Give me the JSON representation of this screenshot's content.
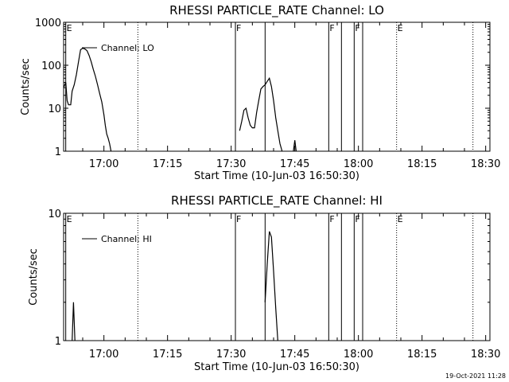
{
  "footer": {
    "stamp": "19-Oct-2021 11:28"
  },
  "chart_data": [
    {
      "type": "line",
      "title": "RHESSI PARTICLE_RATE Channel: LO",
      "xlabel": "Start Time (10-Jun-03 16:50:30)",
      "ylabel": "Counts/sec",
      "y_scale": "log",
      "ylim": [
        1,
        1000
      ],
      "xlim": [
        "16:50:30",
        "18:31:00"
      ],
      "x_ticks": [
        "17:00",
        "17:15",
        "17:30",
        "17:45",
        "18:00",
        "18:15",
        "18:30"
      ],
      "y_ticks": [
        "1",
        "10",
        "100",
        "1000"
      ],
      "legend": {
        "position": "top-left",
        "entries": [
          "Channel: LO"
        ]
      },
      "markers": [
        {
          "time": "16:51",
          "label": "E",
          "style": "solid"
        },
        {
          "time": "17:08",
          "label": "",
          "style": "dotted"
        },
        {
          "time": "17:31",
          "label": "F",
          "style": "solid"
        },
        {
          "time": "17:38",
          "label": "",
          "style": "solid"
        },
        {
          "time": "17:53",
          "label": "F",
          "style": "solid"
        },
        {
          "time": "17:56",
          "label": "",
          "style": "solid"
        },
        {
          "time": "17:59",
          "label": "F",
          "style": "solid"
        },
        {
          "time": "18:01",
          "label": "",
          "style": "solid"
        },
        {
          "time": "18:09",
          "label": "E",
          "style": "dotted"
        },
        {
          "time": "18:27",
          "label": "",
          "style": "dotted"
        }
      ],
      "series": [
        {
          "name": "Channel: LO",
          "segments": [
            [
              [
                "16:50:30",
                30
              ],
              [
                "16:51:00",
                40
              ],
              [
                "16:51:20",
                15
              ],
              [
                "16:51:40",
                12
              ],
              [
                "16:52:10",
                12
              ],
              [
                "16:52:30",
                25
              ],
              [
                "16:53:00",
                35
              ],
              [
                "16:53:30",
                60
              ],
              [
                "16:54:00",
                120
              ],
              [
                "16:54:30",
                230
              ],
              [
                "16:55:00",
                250
              ],
              [
                "16:55:30",
                240
              ],
              [
                "16:56:00",
                220
              ],
              [
                "16:56:30",
                170
              ],
              [
                "16:57:00",
                120
              ],
              [
                "16:57:30",
                80
              ],
              [
                "16:58:00",
                55
              ],
              [
                "16:58:30",
                35
              ],
              [
                "16:59:00",
                22
              ],
              [
                "16:59:30",
                14
              ],
              [
                "17:00:00",
                7
              ],
              [
                "17:00:20",
                4
              ],
              [
                "17:00:40",
                2.5
              ],
              [
                "17:01:00",
                2
              ],
              [
                "17:01:20",
                1.5
              ],
              [
                "17:01:40",
                1
              ]
            ],
            [
              [
                "17:32:00",
                3
              ],
              [
                "17:32:30",
                5
              ],
              [
                "17:33:00",
                9
              ],
              [
                "17:33:30",
                10
              ],
              [
                "17:34:00",
                6
              ],
              [
                "17:34:30",
                4
              ],
              [
                "17:35:00",
                3.5
              ],
              [
                "17:35:30",
                3.5
              ],
              [
                "17:36:00",
                8
              ],
              [
                "17:36:30",
                15
              ],
              [
                "17:37:00",
                28
              ],
              [
                "17:37:30",
                32
              ],
              [
                "17:38:00",
                35
              ],
              [
                "17:38:30",
                42
              ],
              [
                "17:39:00",
                50
              ],
              [
                "17:39:30",
                32
              ],
              [
                "17:40:00",
                15
              ],
              [
                "17:40:30",
                6
              ],
              [
                "17:41:00",
                3
              ],
              [
                "17:41:30",
                1.5
              ],
              [
                "17:42:00",
                1
              ]
            ],
            [
              [
                "17:44:40",
                1
              ],
              [
                "17:45:00",
                1.8
              ],
              [
                "17:45:20",
                1
              ]
            ]
          ]
        }
      ]
    },
    {
      "type": "line",
      "title": "RHESSI PARTICLE_RATE Channel: HI",
      "xlabel": "Start Time (10-Jun-03 16:50:30)",
      "ylabel": "Counts/sec",
      "y_scale": "log",
      "ylim": [
        1,
        10
      ],
      "xlim": [
        "16:50:30",
        "18:31:00"
      ],
      "x_ticks": [
        "17:00",
        "17:15",
        "17:30",
        "17:45",
        "18:00",
        "18:15",
        "18:30"
      ],
      "y_ticks": [
        "1",
        "10"
      ],
      "legend": {
        "position": "top-left",
        "entries": [
          "Channel: HI"
        ]
      },
      "markers": [
        {
          "time": "16:51",
          "label": "E",
          "style": "solid"
        },
        {
          "time": "17:08",
          "label": "",
          "style": "dotted"
        },
        {
          "time": "17:31",
          "label": "F",
          "style": "solid"
        },
        {
          "time": "17:38",
          "label": "",
          "style": "solid"
        },
        {
          "time": "17:53",
          "label": "F",
          "style": "solid"
        },
        {
          "time": "17:56",
          "label": "",
          "style": "solid"
        },
        {
          "time": "17:59",
          "label": "F",
          "style": "solid"
        },
        {
          "time": "18:01",
          "label": "",
          "style": "solid"
        },
        {
          "time": "18:09",
          "label": "E",
          "style": "dotted"
        },
        {
          "time": "18:27",
          "label": "",
          "style": "dotted"
        }
      ],
      "series": [
        {
          "name": "Channel: HI",
          "segments": [
            [
              [
                "16:52:30",
                1
              ],
              [
                "16:52:50",
                2
              ],
              [
                "16:53:10",
                1
              ]
            ],
            [
              [
                "17:38:00",
                2
              ],
              [
                "17:38:30",
                4
              ],
              [
                "17:39:00",
                7.2
              ],
              [
                "17:39:30",
                6.5
              ],
              [
                "17:40:00",
                3.5
              ],
              [
                "17:40:30",
                1.8
              ],
              [
                "17:41:00",
                1
              ]
            ]
          ]
        }
      ]
    }
  ]
}
